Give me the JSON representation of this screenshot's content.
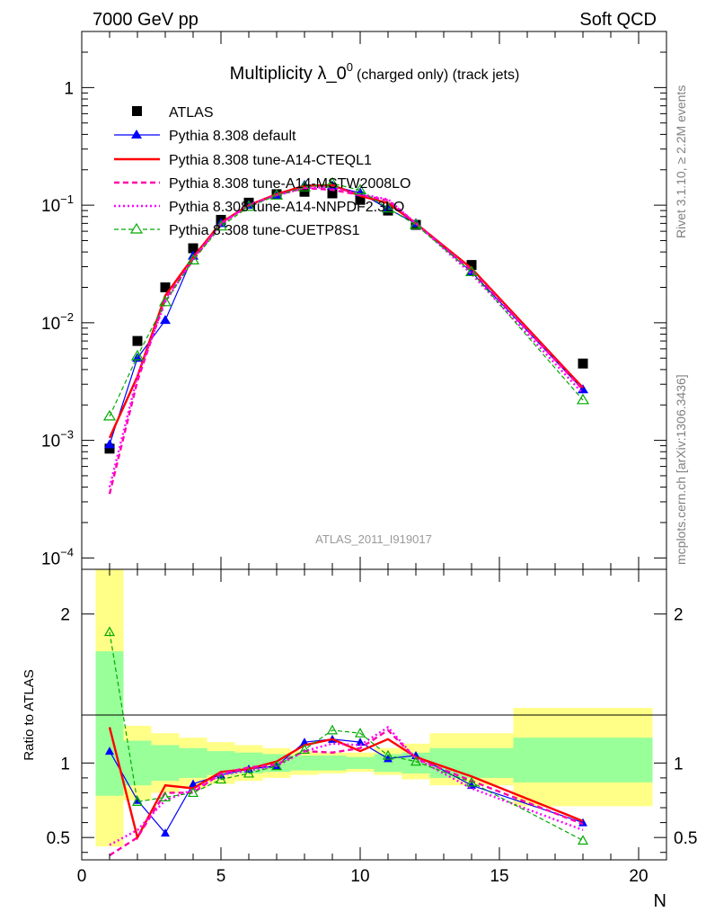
{
  "header": {
    "left": "7000 GeV pp",
    "right": "Soft QCD"
  },
  "side_labels": {
    "rivet": "Rivet 3.1.10, ≥ 2.2M events",
    "mcplots": "mcplots.cern.ch [arXiv:1306.3436]"
  },
  "watermark": "ATLAS_2011_I919017",
  "chart_data": [
    {
      "type": "scatter",
      "panel": "main",
      "title": "Multiplicity λ_0⁰ (charged only) (track jets)",
      "title_main": "Multiplicity λ_0",
      "title_sup": "0",
      "title_suffix": "(charged only) (track jets)",
      "xlabel": "N",
      "ylabel": "",
      "xlim": [
        0,
        21
      ],
      "ylim": [
        8e-05,
        3
      ],
      "yscale": "log",
      "y_tick_labels": [
        {
          "base": "10",
          "exp": "−4",
          "value": 0.0001
        },
        {
          "base": "10",
          "exp": "−3",
          "value": 0.001
        },
        {
          "base": "10",
          "exp": "−2",
          "value": 0.01
        },
        {
          "base": "10",
          "exp": "−1",
          "value": 0.1
        },
        {
          "base": "1",
          "exp": "",
          "value": 1
        }
      ],
      "legend_position": "top-left",
      "series": [
        {
          "name": "ATLAS",
          "color": "#000000",
          "style": "square",
          "x": [
            1,
            2,
            3,
            4,
            5,
            6,
            7,
            8,
            9,
            10,
            11,
            12,
            14,
            18
          ],
          "y": [
            0.00085,
            0.007,
            0.02,
            0.043,
            0.075,
            0.105,
            0.124,
            0.13,
            0.126,
            0.111,
            0.09,
            0.068,
            0.031,
            0.0045
          ]
        },
        {
          "name": "Pythia 8.308 default",
          "color": "#0000ff",
          "style": "solid-triangle",
          "x": [
            1,
            2,
            3,
            4,
            5,
            6,
            7,
            8,
            9,
            10,
            11,
            12,
            14,
            18
          ],
          "y": [
            0.00092,
            0.005,
            0.0105,
            0.037,
            0.07,
            0.1,
            0.122,
            0.148,
            0.146,
            0.127,
            0.093,
            0.07,
            0.027,
            0.0027
          ]
        },
        {
          "name": "Pythia 8.308 tune-A14-CTEQL1",
          "color": "#ff0000",
          "style": "solid",
          "x": [
            1,
            2,
            3,
            4,
            5,
            6,
            7,
            8,
            9,
            10,
            11,
            12,
            14,
            18
          ],
          "y": [
            0.00105,
            0.0035,
            0.017,
            0.036,
            0.071,
            0.1,
            0.124,
            0.146,
            0.148,
            0.12,
            0.104,
            0.07,
            0.029,
            0.0028
          ]
        },
        {
          "name": "Pythia 8.308 tune-A14-MSTW2008LO",
          "color": "#ff00aa",
          "style": "dashed",
          "x": [
            1,
            2,
            3,
            4,
            5,
            6,
            7,
            8,
            9,
            10,
            11,
            12,
            14,
            18
          ],
          "y": [
            0.00035,
            0.0032,
            0.016,
            0.034,
            0.07,
            0.1,
            0.122,
            0.14,
            0.135,
            0.122,
            0.11,
            0.07,
            0.028,
            0.0027
          ]
        },
        {
          "name": "Pythia 8.308 tune-A14-NNPDF2.3LO",
          "color": "#ff00ff",
          "style": "dotted",
          "x": [
            1,
            2,
            3,
            4,
            5,
            6,
            7,
            8,
            9,
            10,
            11,
            12,
            14,
            18
          ],
          "y": [
            0.0004,
            0.0035,
            0.015,
            0.035,
            0.069,
            0.1,
            0.121,
            0.14,
            0.142,
            0.124,
            0.112,
            0.07,
            0.026,
            0.0025
          ]
        },
        {
          "name": "Pythia 8.308 tune-CUETP8S1",
          "color": "#00aa00",
          "style": "dashed-open-triangle",
          "x": [
            1,
            2,
            3,
            4,
            5,
            6,
            7,
            8,
            9,
            10,
            11,
            12,
            14,
            18
          ],
          "y": [
            0.0016,
            0.0052,
            0.015,
            0.034,
            0.066,
            0.097,
            0.121,
            0.142,
            0.153,
            0.134,
            0.094,
            0.068,
            0.027,
            0.0022
          ]
        }
      ]
    },
    {
      "type": "line",
      "panel": "ratio",
      "xlabel": "N",
      "ylabel": "Ratio to ATLAS",
      "xlim": [
        0,
        21
      ],
      "ylim": [
        0.35,
        2.3
      ],
      "x_ticks": [
        0,
        5,
        10,
        15,
        20
      ],
      "y_ticks": [
        0.5,
        1,
        2
      ],
      "bands": {
        "bins": [
          [
            0.5,
            1.5
          ],
          [
            1.5,
            2.5
          ],
          [
            2.5,
            3.5
          ],
          [
            3.5,
            4.5
          ],
          [
            4.5,
            5.5
          ],
          [
            5.5,
            6.5
          ],
          [
            6.5,
            7.5
          ],
          [
            7.5,
            8.5
          ],
          [
            8.5,
            9.5
          ],
          [
            9.5,
            10.5
          ],
          [
            10.5,
            11.5
          ],
          [
            11.5,
            12.5
          ],
          [
            12.5,
            15.5
          ],
          [
            15.5,
            20.5
          ]
        ],
        "green": [
          [
            0.78,
            1.75
          ],
          [
            0.85,
            1.15
          ],
          [
            0.88,
            1.12
          ],
          [
            0.9,
            1.1
          ],
          [
            0.92,
            1.08
          ],
          [
            0.93,
            1.07
          ],
          [
            0.94,
            1.06
          ],
          [
            0.95,
            1.05
          ],
          [
            0.95,
            1.05
          ],
          [
            0.96,
            1.04
          ],
          [
            0.94,
            1.06
          ],
          [
            0.93,
            1.07
          ],
          [
            0.9,
            1.1
          ],
          [
            0.87,
            1.17
          ]
        ],
        "yellow": [
          [
            0.44,
            2.45
          ],
          [
            0.75,
            1.25
          ],
          [
            0.8,
            1.2
          ],
          [
            0.83,
            1.17
          ],
          [
            0.86,
            1.14
          ],
          [
            0.88,
            1.12
          ],
          [
            0.9,
            1.1
          ],
          [
            0.92,
            1.08
          ],
          [
            0.93,
            1.07
          ],
          [
            0.94,
            1.07
          ],
          [
            0.92,
            1.1
          ],
          [
            0.89,
            1.13
          ],
          [
            0.85,
            1.2
          ],
          [
            0.71,
            1.37
          ]
        ]
      },
      "series": [
        {
          "name": "Pythia 8.308 default",
          "color": "#0000ff",
          "x": [
            1,
            2,
            3,
            4,
            5,
            6,
            7,
            8,
            9,
            10,
            11,
            12,
            14,
            18
          ],
          "y": [
            1.08,
            0.75,
            0.53,
            0.86,
            0.92,
            0.96,
            0.98,
            1.14,
            1.16,
            1.14,
            1.03,
            1.05,
            0.85,
            0.6
          ]
        },
        {
          "name": "Pythia 8.308 tune-A14-CTEQL1",
          "color": "#ff0000",
          "x": [
            1,
            2,
            3,
            4,
            5,
            6,
            7,
            8,
            9,
            10,
            11,
            12,
            14,
            18
          ],
          "y": [
            1.24,
            0.5,
            0.85,
            0.83,
            0.94,
            0.96,
            1.01,
            1.12,
            1.16,
            1.08,
            1.16,
            1.04,
            0.91,
            0.61
          ]
        },
        {
          "name": "Pythia 8.308 tune-A14-MSTW2008LO",
          "color": "#ff00aa",
          "x": [
            1,
            2,
            3,
            4,
            5,
            6,
            7,
            8,
            9,
            10,
            11,
            12,
            14,
            18
          ],
          "y": [
            0.38,
            0.5,
            0.8,
            0.8,
            0.93,
            0.97,
            0.99,
            1.08,
            1.07,
            1.1,
            1.22,
            1.03,
            0.88,
            0.59
          ]
        },
        {
          "name": "Pythia 8.308 tune-A14-NNPDF2.3LO",
          "color": "#ff00ff",
          "x": [
            1,
            2,
            3,
            4,
            5,
            6,
            7,
            8,
            9,
            10,
            11,
            12,
            14,
            18
          ],
          "y": [
            0.45,
            0.55,
            0.75,
            0.82,
            0.92,
            0.95,
            0.98,
            1.08,
            1.13,
            1.12,
            1.24,
            1.03,
            0.83,
            0.55
          ]
        },
        {
          "name": "Pythia 8.308 tune-CUETP8S1",
          "color": "#00aa00",
          "x": [
            1,
            2,
            3,
            4,
            5,
            6,
            7,
            8,
            9,
            10,
            11,
            12,
            14,
            18
          ],
          "y": [
            1.88,
            0.74,
            0.77,
            0.8,
            0.89,
            0.93,
            0.98,
            1.09,
            1.22,
            1.2,
            1.05,
            1.01,
            0.87,
            0.48
          ]
        }
      ]
    }
  ]
}
